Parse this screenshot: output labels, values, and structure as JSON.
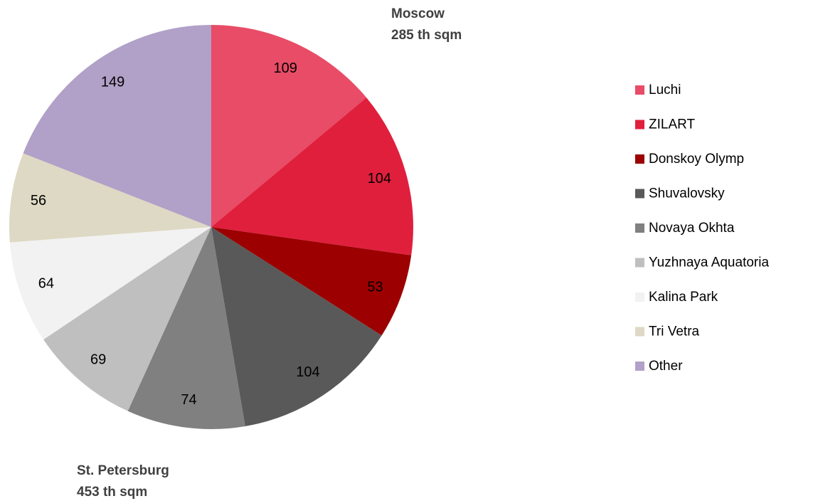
{
  "chart_data": {
    "type": "pie",
    "categories": [
      "Luchi",
      "ZILART",
      "Donskoy Olymp",
      "Shuvalovsky",
      "Novaya Okhta",
      "Yuzhnaya Aquatoria",
      "Kalina Park",
      "Tri Vetra",
      "Other"
    ],
    "values": [
      109,
      104,
      53,
      104,
      74,
      69,
      64,
      56,
      149
    ],
    "colors": [
      "#e84c66",
      "#e01f3d",
      "#9c0000",
      "#595959",
      "#808080",
      "#bfbfbf",
      "#f2f2f2",
      "#ddd9c4",
      "#b1a0c7"
    ],
    "annotations": [
      "Moscow",
      "285 th sqm",
      "St. Petersburg",
      "453 th sqm"
    ],
    "legend": "right"
  }
}
